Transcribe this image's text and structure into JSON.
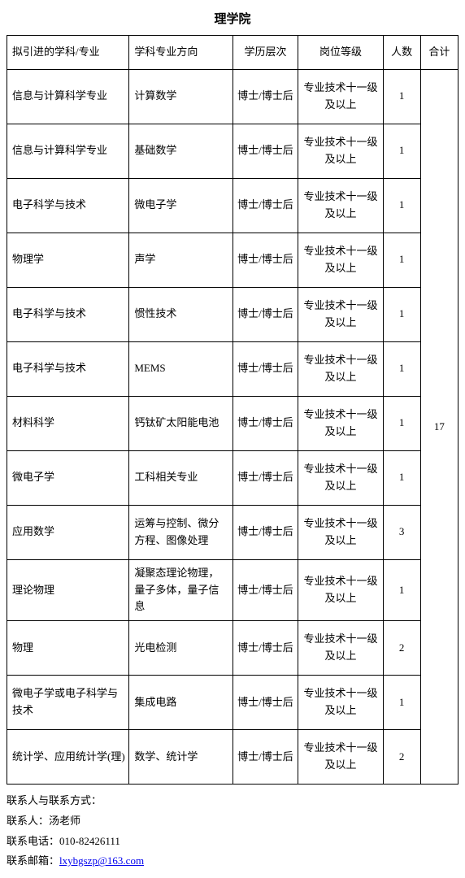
{
  "title": "理学院",
  "columns": [
    "拟引进的学科/专业",
    "学科专业方向",
    "学历层次",
    "岗位等级",
    "人数",
    "合计"
  ],
  "total": "17",
  "rows": [
    {
      "a": "信息与计算科学专业",
      "b": "计算数学",
      "c": "博士/博士后",
      "d": "专业技术十一级及以上",
      "e": "1"
    },
    {
      "a": "信息与计算科学专业",
      "b": "基础数学",
      "c": "博士/博士后",
      "d": "专业技术十一级及以上",
      "e": "1"
    },
    {
      "a": "电子科学与技术",
      "b": "微电子学",
      "c": "博士/博士后",
      "d": "专业技术十一级及以上",
      "e": "1"
    },
    {
      "a": "物理学",
      "b": "声学",
      "c": "博士/博士后",
      "d": "专业技术十一级及以上",
      "e": "1"
    },
    {
      "a": "电子科学与技术",
      "b": "惯性技术",
      "c": "博士/博士后",
      "d": "专业技术十一级及以上",
      "e": "1"
    },
    {
      "a": "电子科学与技术",
      "b": "MEMS",
      "c": "博士/博士后",
      "d": "专业技术十一级及以上",
      "e": "1"
    },
    {
      "a": "材料科学",
      "b": "钙钛矿太阳能电池",
      "c": "博士/博士后",
      "d": "专业技术十一级及以上",
      "e": "1"
    },
    {
      "a": "微电子学",
      "b": "工科相关专业",
      "c": "博士/博士后",
      "d": "专业技术十一级及以上",
      "e": "1"
    },
    {
      "a": "应用数学",
      "b": "运筹与控制、微分方程、图像处理",
      "c": "博士/博士后",
      "d": "专业技术十一级及以上",
      "e": "3"
    },
    {
      "a": "理论物理",
      "b": "凝聚态理论物理，量子多体，量子信息",
      "c": "博士/博士后",
      "d": "专业技术十一级及以上",
      "e": "1"
    },
    {
      "a": "物理",
      "b": "光电检测",
      "c": "博士/博士后",
      "d": "专业技术十一级及以上",
      "e": "2"
    },
    {
      "a": "微电子学或电子科学与技术",
      "b": "集成电路",
      "c": "博士/博士后",
      "d": "专业技术十一级及以上",
      "e": "1"
    },
    {
      "a": "统计学、应用统计学(理)",
      "b": "数学、统计学",
      "c": "博士/博士后",
      "d": "专业技术十一级及以上",
      "e": "2"
    }
  ],
  "contact": {
    "header": "联系人与联系方式：",
    "person_label": "联系人：",
    "person": "汤老师",
    "phone_label": "联系电话：",
    "phone": "010-82426111",
    "email_label": "联系邮箱：",
    "email": "lxybgszp@163.com"
  }
}
